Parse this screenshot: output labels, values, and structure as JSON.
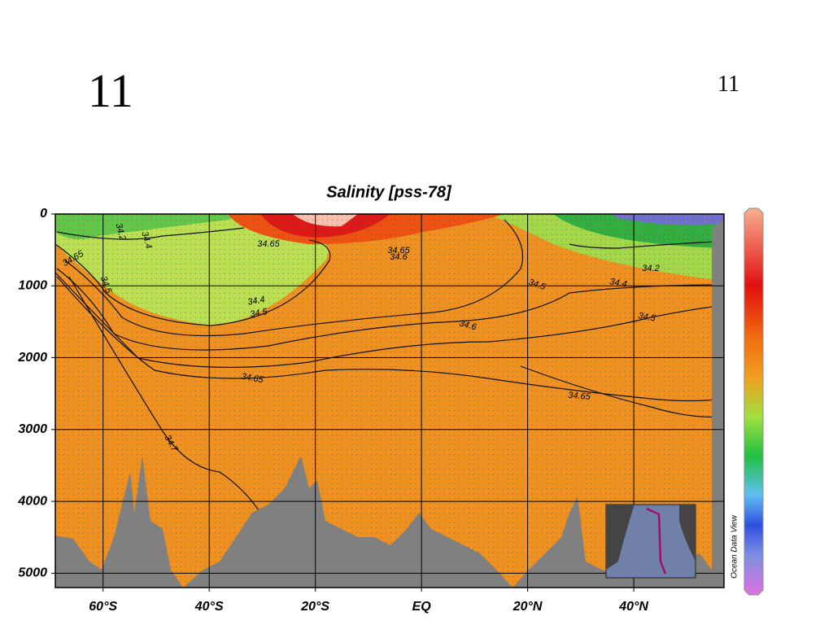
{
  "slide": {
    "number_left": "11",
    "number_right": "11"
  },
  "chart_data": {
    "type": "section",
    "title": "Salinity [pss-78]",
    "colorbar_label": "Ocean Data View",
    "xlim": [
      -69,
      57
    ],
    "xticks": [
      {
        "value": -60,
        "label": "60°S"
      },
      {
        "value": -40,
        "label": "40°S"
      },
      {
        "value": -20,
        "label": "20°S"
      },
      {
        "value": 0,
        "label": "EQ"
      },
      {
        "value": 20,
        "label": "20°N"
      },
      {
        "value": 40,
        "label": "40°N"
      }
    ],
    "ylim": [
      0,
      5200
    ],
    "yticks": [
      0,
      1000,
      2000,
      3000,
      4000,
      5000
    ],
    "grid": true,
    "contour_labels": [
      "34.2",
      "34.4",
      "34.65",
      "34.5",
      "34.4",
      "34.5",
      "34.65",
      "34.6",
      "34.65",
      "34.7",
      "34.65",
      "34.6",
      "34.5",
      "34.4",
      "34.2",
      "34.5",
      "34.65"
    ]
  }
}
